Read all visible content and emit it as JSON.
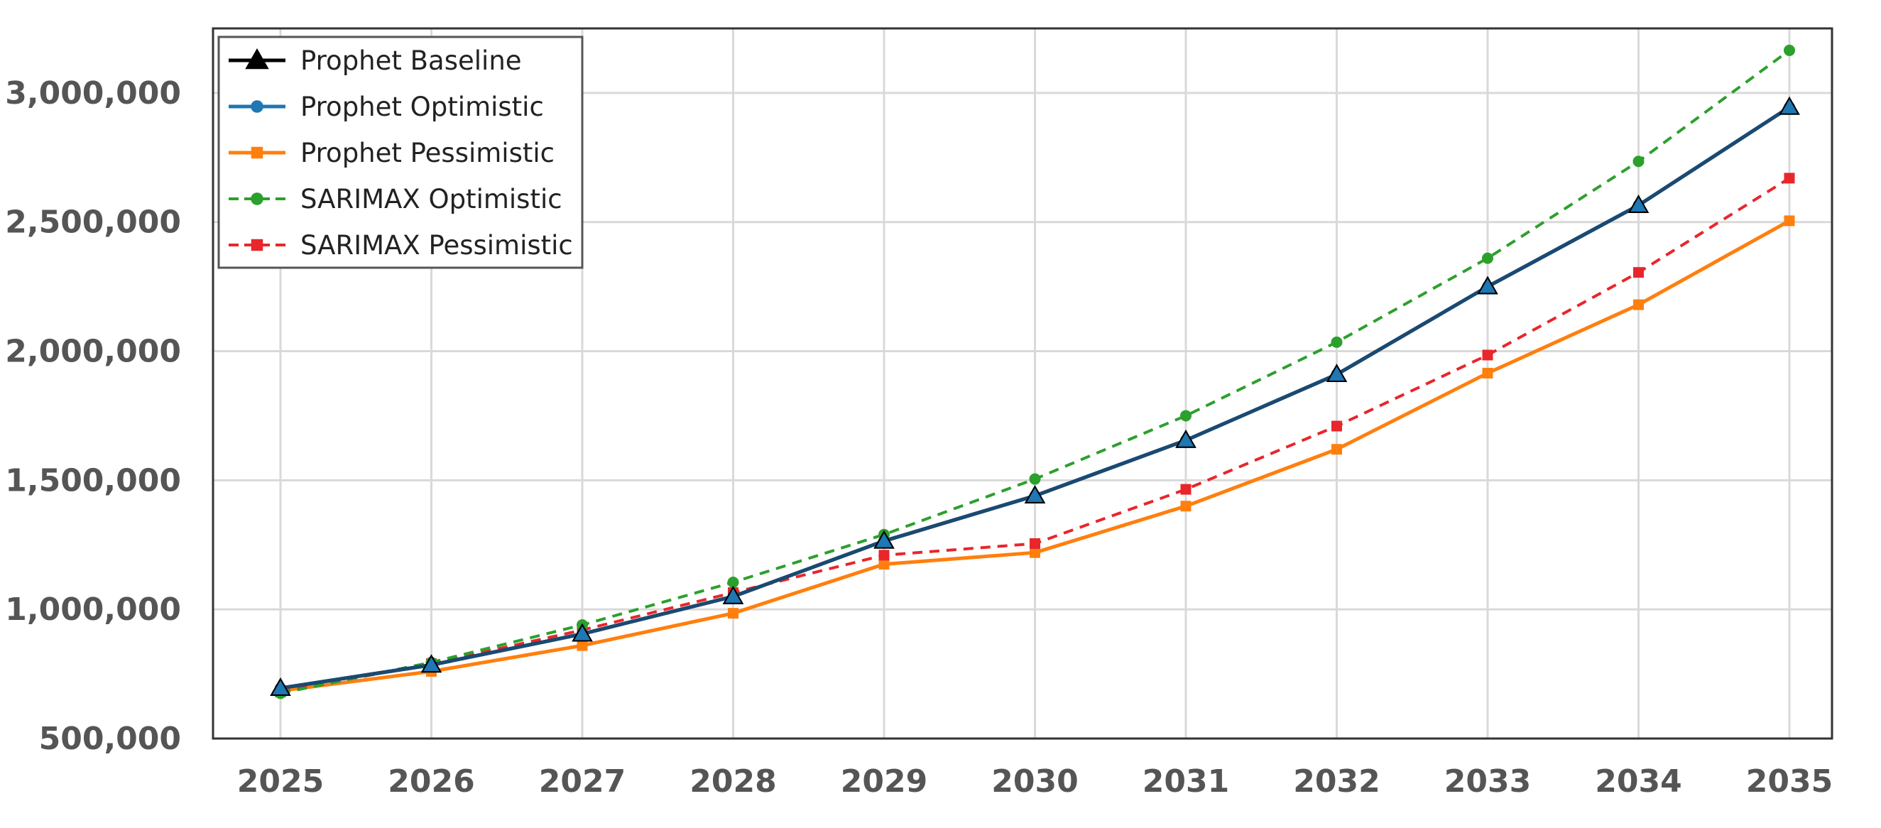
{
  "chart_data": {
    "type": "line",
    "title": "",
    "xlabel": "",
    "ylabel": "",
    "categories": [
      "2025",
      "2026",
      "2027",
      "2028",
      "2029",
      "2030",
      "2031",
      "2032",
      "2033",
      "2034",
      "2035"
    ],
    "ylim": [
      500000,
      3250000
    ],
    "yticks": [
      500000,
      1000000,
      1500000,
      2000000,
      2500000,
      3000000
    ],
    "ytick_labels": [
      "500,000",
      "1,000,000",
      "1,500,000",
      "2,000,000",
      "2,500,000",
      "3,000,000"
    ],
    "grid": true,
    "legend_position": "top-left",
    "series": [
      {
        "name": "Prophet Baseline",
        "color": "#000000",
        "marker": "triangle",
        "style": "solid",
        "values": [
          695000,
          785000,
          905000,
          1050000,
          1265000,
          1440000,
          1655000,
          1910000,
          2250000,
          2565000,
          2945000
        ]
      },
      {
        "name": "Prophet Optimistic",
        "color": "#1f77b4",
        "marker": "circle",
        "style": "solid",
        "values": [
          695000,
          785000,
          905000,
          1050000,
          1265000,
          1440000,
          1655000,
          1910000,
          2250000,
          2565000,
          2945000
        ]
      },
      {
        "name": "Prophet Pessimistic",
        "color": "#ff7f0e",
        "marker": "square",
        "style": "solid",
        "values": [
          685000,
          760000,
          860000,
          985000,
          1175000,
          1220000,
          1400000,
          1620000,
          1915000,
          2180000,
          2505000
        ]
      },
      {
        "name": "SARIMAX Optimistic",
        "color": "#2ca02c",
        "marker": "circle",
        "style": "dashed",
        "values": [
          675000,
          795000,
          940000,
          1105000,
          1290000,
          1505000,
          1750000,
          2035000,
          2360000,
          2735000,
          3165000
        ]
      },
      {
        "name": "SARIMAX Pessimistic",
        "color": "#e8262b",
        "marker": "square",
        "style": "dashed",
        "values": [
          680000,
          790000,
          920000,
          1065000,
          1210000,
          1255000,
          1465000,
          1710000,
          1985000,
          2305000,
          2670000
        ]
      }
    ]
  }
}
